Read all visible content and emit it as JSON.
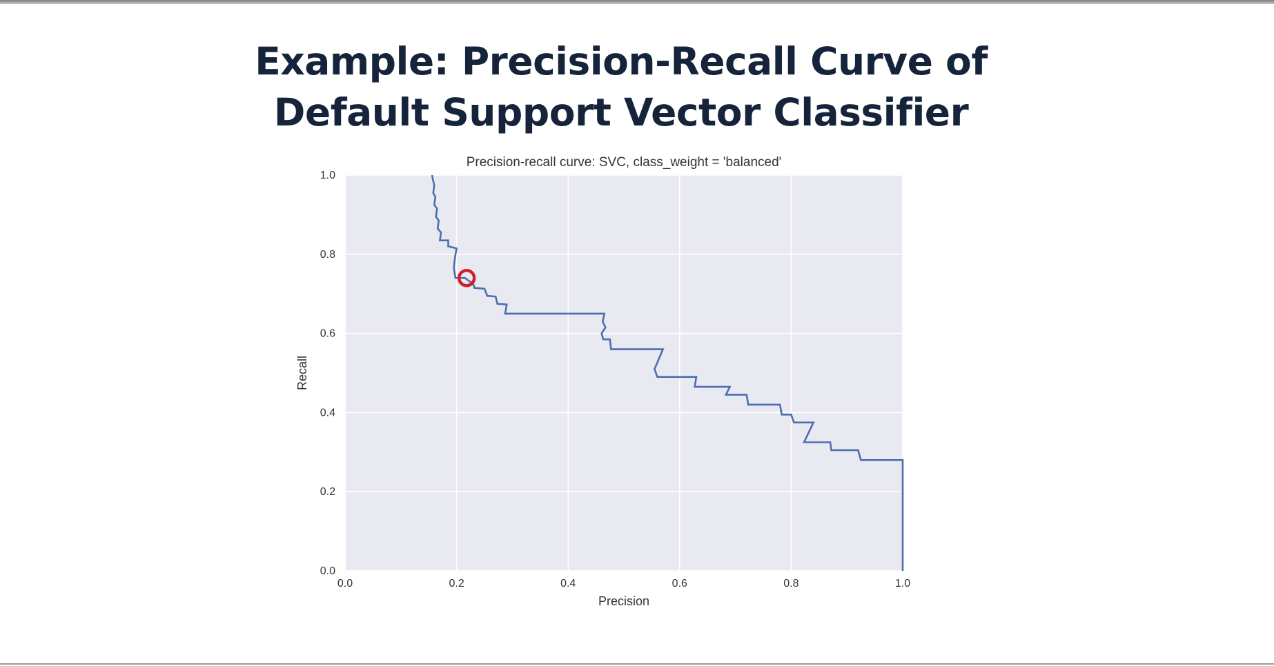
{
  "slide": {
    "title_line1": "Example: Precision-Recall Curve of",
    "title_line2": "Default Support Vector Classifier"
  },
  "chart_data": {
    "type": "line",
    "title": "Precision-recall curve: SVC, class_weight = 'balanced'",
    "xlabel": "Precision",
    "ylabel": "Recall",
    "xlim": [
      0.0,
      1.0
    ],
    "ylim": [
      0.0,
      1.0
    ],
    "xticks": [
      "0.0",
      "0.2",
      "0.4",
      "0.6",
      "0.8",
      "1.0"
    ],
    "yticks": [
      "0.0",
      "0.2",
      "0.4",
      "0.6",
      "0.8",
      "1.0"
    ],
    "grid": true,
    "background_color": "#e9e9f1",
    "grid_color": "#ffffff",
    "series": [
      {
        "color": "#4c6eb0",
        "x": [
          0.156,
          0.158,
          0.16,
          0.158,
          0.162,
          0.16,
          0.165,
          0.163,
          0.168,
          0.166,
          0.172,
          0.17,
          0.185,
          0.185,
          0.2,
          0.198,
          0.196,
          0.195,
          0.198,
          0.215,
          0.23,
          0.232,
          0.25,
          0.255,
          0.27,
          0.273,
          0.29,
          0.287,
          0.35,
          0.42,
          0.465,
          0.462,
          0.467,
          0.46,
          0.463,
          0.475,
          0.477,
          0.52,
          0.57,
          0.555,
          0.56,
          0.58,
          0.63,
          0.627,
          0.66,
          0.69,
          0.683,
          0.72,
          0.723,
          0.76,
          0.78,
          0.783,
          0.8,
          0.805,
          0.84,
          0.823,
          0.87,
          0.872,
          0.92,
          0.925,
          0.96,
          1.0,
          1.0
        ],
        "y": [
          1.0,
          0.985,
          0.975,
          0.955,
          0.945,
          0.925,
          0.915,
          0.895,
          0.885,
          0.865,
          0.855,
          0.835,
          0.835,
          0.82,
          0.815,
          0.8,
          0.78,
          0.765,
          0.74,
          0.74,
          0.725,
          0.715,
          0.713,
          0.695,
          0.693,
          0.675,
          0.673,
          0.65,
          0.65,
          0.65,
          0.65,
          0.63,
          0.615,
          0.6,
          0.585,
          0.585,
          0.56,
          0.56,
          0.56,
          0.51,
          0.49,
          0.49,
          0.49,
          0.465,
          0.465,
          0.465,
          0.445,
          0.445,
          0.42,
          0.42,
          0.42,
          0.395,
          0.395,
          0.375,
          0.375,
          0.325,
          0.325,
          0.305,
          0.305,
          0.28,
          0.28,
          0.28,
          0.0
        ]
      }
    ],
    "highlight_point": {
      "x": 0.218,
      "y": 0.74,
      "color": "#d0202a"
    }
  }
}
